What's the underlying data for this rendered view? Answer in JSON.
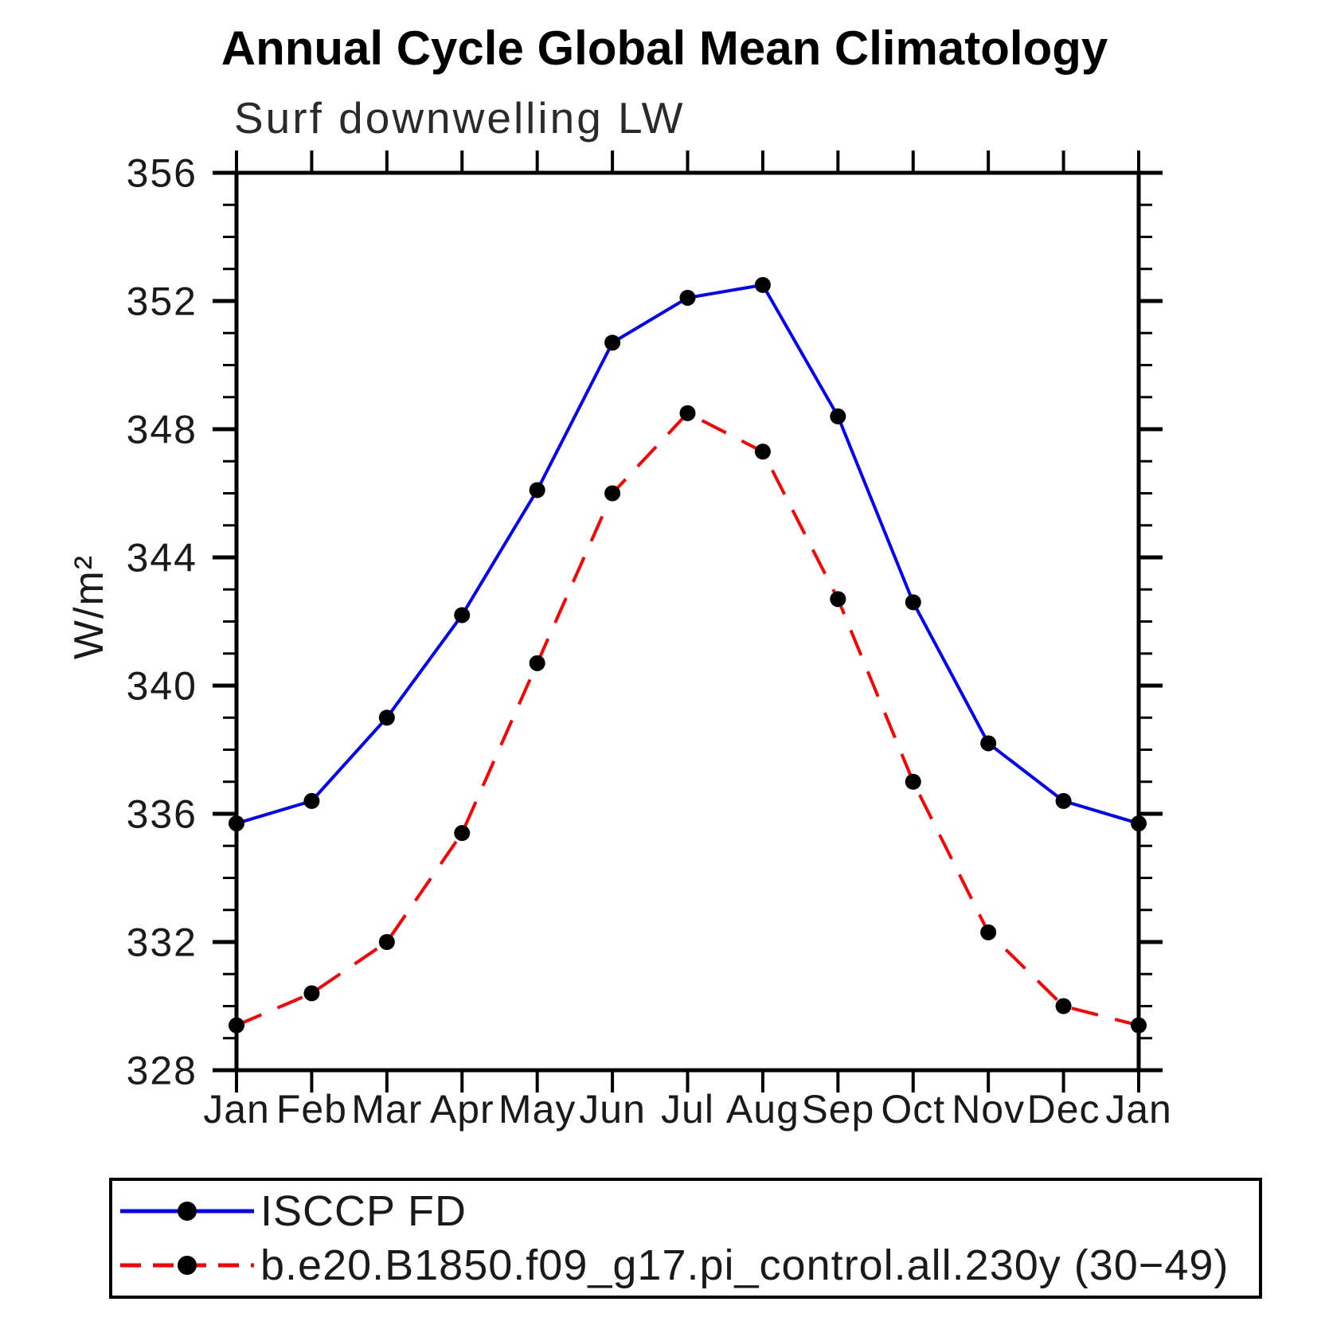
{
  "page": {
    "background": "#ffffff"
  },
  "chart_data": {
    "type": "line",
    "title": "Annual Cycle Global Mean Climatology",
    "subtitle": "Surf downwelling LW",
    "ylabel": "W/m²",
    "xlabel": "",
    "categories": [
      "Jan",
      "Feb",
      "Mar",
      "Apr",
      "May",
      "Jun",
      "Jul",
      "Aug",
      "Sep",
      "Oct",
      "Nov",
      "Dec",
      "Jan"
    ],
    "ylim": [
      328,
      356
    ],
    "yticks": [
      328,
      332,
      336,
      340,
      344,
      348,
      352,
      356
    ],
    "minor_tick_step": 1,
    "grid": false,
    "legend_position": "bottom-left-box",
    "axis_color": "#000000",
    "series": [
      {
        "name": "ISCCP FD",
        "color": "#0000ff",
        "line_style": "solid",
        "marker": "filled-circle",
        "marker_color": "#000000",
        "values": [
          335.7,
          336.4,
          339.0,
          342.2,
          346.1,
          350.7,
          352.1,
          352.5,
          348.4,
          342.6,
          338.2,
          336.4,
          335.7
        ]
      },
      {
        "name": "b.e20.B1850.f09_g17.pi_control.all.230y (30−49)",
        "color": "#ff0000",
        "line_style": "dashed",
        "marker": "filled-circle",
        "marker_color": "#000000",
        "values": [
          329.4,
          330.4,
          332.0,
          335.4,
          340.7,
          346.0,
          348.5,
          347.3,
          342.7,
          337.0,
          332.3,
          330.0,
          329.4
        ]
      }
    ]
  }
}
